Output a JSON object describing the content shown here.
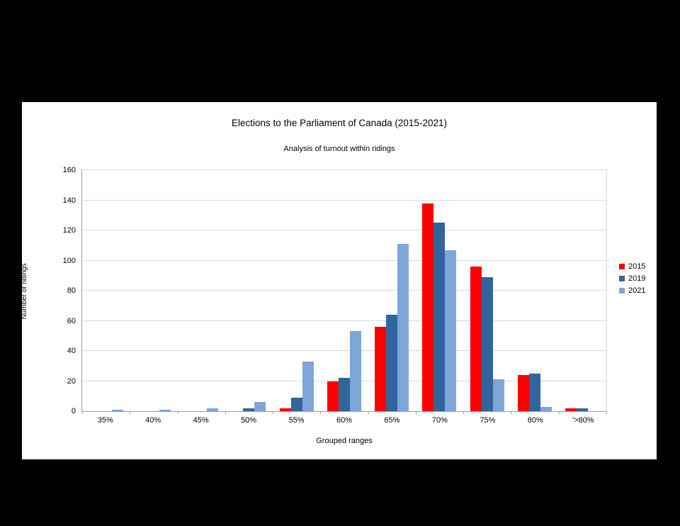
{
  "page": {
    "background_color": "#000000",
    "panel_color": "#ffffff"
  },
  "chart_data": {
    "type": "bar",
    "title": "Elections to the Parliament of Canada (2015-2021)",
    "subtitle": "Analysis of turnout within ridings",
    "xlabel": "Grouped ranges",
    "ylabel": "Number of ridings",
    "ylim": [
      0,
      160
    ],
    "ytick_step": 20,
    "yticks": [
      0,
      20,
      40,
      60,
      80,
      100,
      120,
      140,
      160
    ],
    "grid": "horizontal-only",
    "legend_position": "right",
    "categories": [
      "35%",
      "40%",
      "45%",
      "50%",
      "55%",
      "60%",
      "65%",
      "70%",
      "75%",
      "80%",
      "'>80%"
    ],
    "series": [
      {
        "name": "2015",
        "color": "#ff0000",
        "values": [
          0,
          0,
          0,
          0,
          2,
          20,
          56,
          138,
          96,
          24,
          2
        ]
      },
      {
        "name": "2019",
        "color": "#31659c",
        "values": [
          0,
          0,
          0,
          2,
          9,
          22,
          64,
          125,
          89,
          25,
          2
        ]
      },
      {
        "name": "2021",
        "color": "#7ea6d8",
        "values": [
          1,
          1,
          2,
          6,
          33,
          53,
          111,
          107,
          21,
          3,
          0
        ]
      }
    ]
  }
}
